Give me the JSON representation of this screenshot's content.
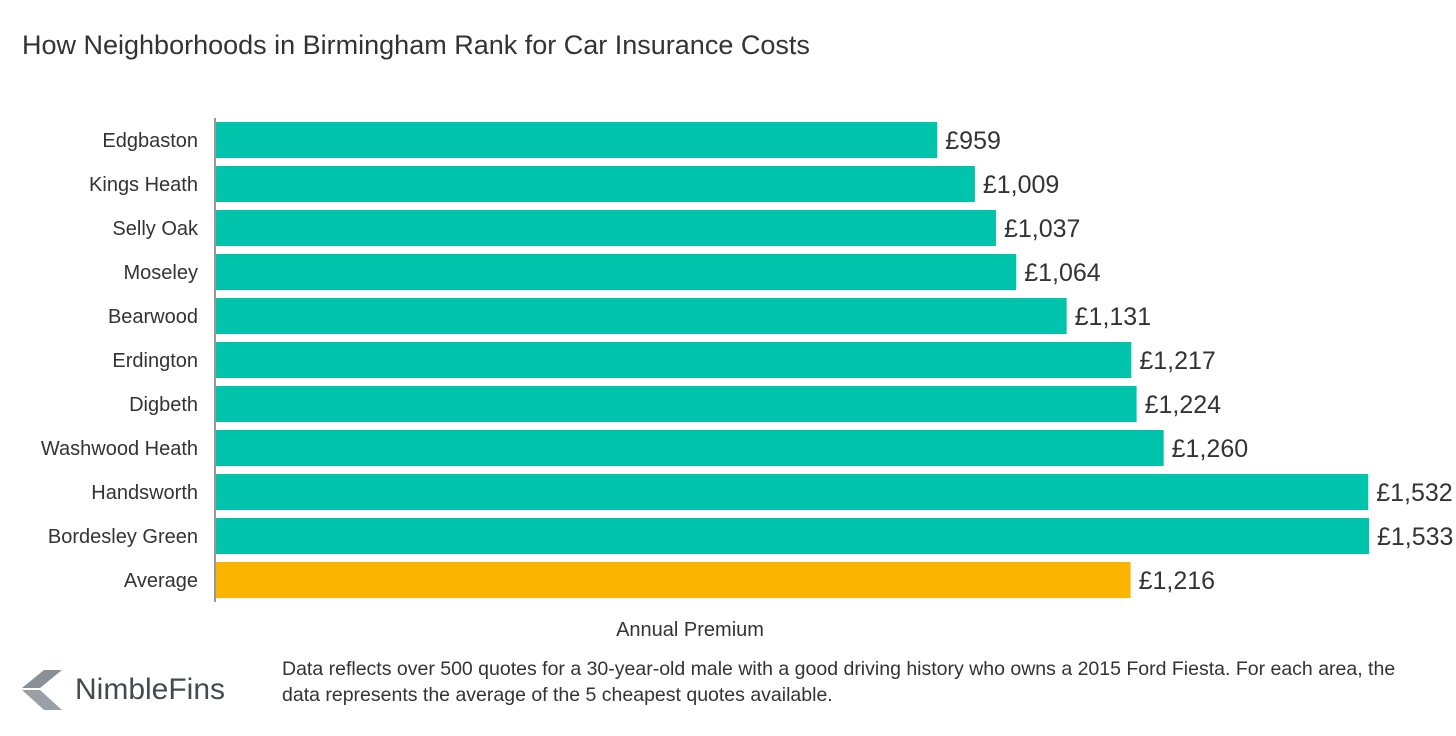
{
  "chart_data": {
    "type": "bar",
    "orientation": "horizontal",
    "title": "How Neighborhoods in Birmingham Rank for Car Insurance Costs",
    "xlabel": "Annual Premium",
    "ylabel": "",
    "categories": [
      "Edgbaston",
      "Kings Heath",
      "Selly Oak",
      "Moseley",
      "Bearwood",
      "Erdington",
      "Digbeth",
      "Washwood Heath",
      "Handsworth",
      "Bordesley Green",
      "Average"
    ],
    "values": [
      959,
      1009,
      1037,
      1064,
      1131,
      1217,
      1224,
      1260,
      1532,
      1533,
      1216
    ],
    "value_labels": [
      "£959",
      "£1,009",
      "£1,037",
      "£1,064",
      "£1,131",
      "£1,217",
      "£1,224",
      "£1,260",
      "£1,532",
      "£1,533",
      "£1,216"
    ],
    "xlim": [
      0,
      1533
    ],
    "grid": false,
    "colors": {
      "bar": "#00c3ac",
      "average_bar": "#fbb400",
      "axis": "#333333"
    }
  },
  "brand": {
    "name": "NimbleFins",
    "icon": "nimblefins-chevron-icon",
    "icon_color": "#8a9096",
    "text_color": "#444a50"
  },
  "footnote": "Data reflects over 500 quotes for a 30-year-old male with a good driving history who owns a 2015 Ford Fiesta. For each area, the data represents the average of the 5 cheapest quotes available."
}
